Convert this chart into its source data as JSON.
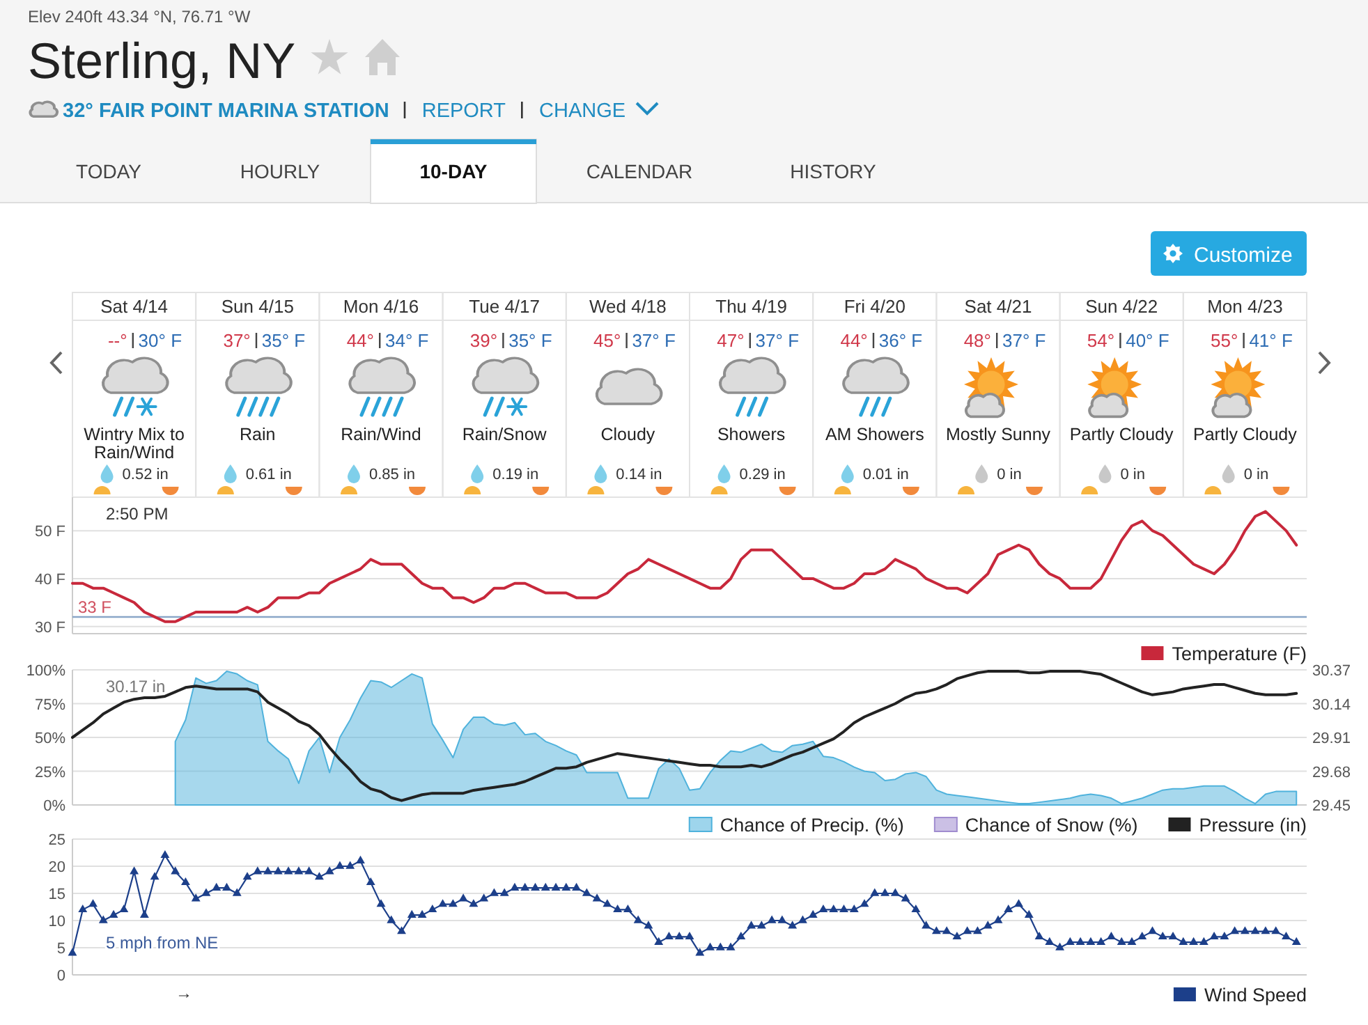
{
  "chart_data": [
    {
      "type": "other",
      "title": "Sterling, NY",
      "subtitle": "Elev 240ft 43.34 °N, 76.71 °W",
      "annotations": [
        "32° FAIR POINT MARINA STATION",
        "REPORT",
        "CHANGE",
        "TODAY",
        "HOURLY",
        "10-DAY",
        "CALENDAR",
        "HISTORY",
        "Customize"
      ]
    },
    {
      "type": "other",
      "annotations": [
        "Sat 4/14",
        "--°",
        "30° F",
        "Wintry Mix to Rain/Wind",
        "0.52 in",
        "Sun 4/15",
        "37°",
        "35° F",
        "Rain",
        "0.61 in",
        "Mon 4/16",
        "44°",
        "34° F",
        "Rain/Wind",
        "0.85 in",
        "Tue 4/17",
        "39°",
        "35° F",
        "Rain/Snow",
        "0.19 in",
        "Wed 4/18",
        "45°",
        "37° F",
        "Cloudy",
        "0.14 in",
        "Thu 4/19",
        "47°",
        "37° F",
        "Showers",
        "0.29 in",
        "Fri 4/20",
        "44°",
        "36° F",
        "AM Showers",
        "0.01 in",
        "Sat 4/21",
        "48°",
        "37° F",
        "Mostly Sunny",
        "0 in",
        "Sun 4/22",
        "54°",
        "40° F",
        "Partly Cloudy",
        "0 in",
        "Mon 4/23",
        "55°",
        "41° F",
        "Partly Cloudy",
        "0 in"
      ]
    },
    {
      "type": "line",
      "categories": [
        null,
        null,
        null,
        null,
        null,
        null,
        null,
        null,
        null,
        null,
        null,
        null,
        null,
        null,
        null,
        null,
        null,
        null,
        null,
        null,
        null,
        null,
        null,
        null,
        null,
        null,
        null,
        null,
        null,
        null,
        null,
        null,
        null,
        null,
        null,
        null,
        null,
        null,
        null,
        null,
        null,
        null,
        null,
        null,
        null,
        null,
        null,
        null,
        null,
        null,
        null,
        null,
        null,
        null,
        null,
        null,
        null,
        null,
        null,
        null,
        null,
        null,
        null,
        null,
        null,
        null,
        null,
        null,
        null,
        null,
        null,
        null,
        null,
        null,
        null,
        null,
        null,
        null,
        null,
        null,
        null,
        null,
        null,
        null,
        null,
        null,
        null,
        null,
        null,
        null,
        null,
        null,
        null,
        null,
        null,
        null,
        null,
        null,
        null,
        null,
        null,
        null,
        null,
        null,
        null,
        null,
        null,
        null,
        null,
        null,
        null,
        null,
        null,
        null,
        null,
        null,
        null,
        null,
        null,
        null,
        null
      ],
      "ylim": [
        28.5,
        57
      ],
      "yticks": [
        {
          "value": 30,
          "label": "30 F"
        },
        {
          "value": 40,
          "label": "40 F"
        },
        {
          "value": 50,
          "label": "50 F"
        }
      ],
      "grid": "y",
      "legend": "bottom right",
      "series": [
        {
          "name": "Temperature (F)",
          "color": "#c8283b",
          "values": [
            39,
            39,
            38,
            38,
            37,
            36,
            35,
            33,
            32,
            31,
            31,
            32,
            33,
            33,
            33,
            33,
            33,
            34,
            33,
            34,
            36,
            36,
            36,
            37,
            37,
            39,
            40,
            41,
            42,
            44,
            43,
            43,
            43,
            41,
            39,
            38,
            38,
            36,
            36,
            35,
            36,
            38,
            38,
            39,
            39,
            38,
            37,
            37,
            37,
            36,
            36,
            36,
            37,
            39,
            41,
            42,
            44,
            43,
            42,
            41,
            40,
            39,
            38,
            38,
            40,
            44,
            46,
            46,
            46,
            44,
            42,
            40,
            40,
            39,
            38,
            38,
            39,
            41,
            41,
            42,
            44,
            43,
            42,
            40,
            39,
            38,
            38,
            37,
            39,
            41,
            45,
            46,
            47,
            46,
            43,
            41,
            40,
            38,
            38,
            38,
            40,
            44,
            48,
            51,
            52,
            50,
            49,
            47,
            45,
            43,
            42,
            41,
            43,
            46,
            50,
            53,
            54,
            52,
            50,
            47,
            null
          ]
        }
      ],
      "ref_lines": [
        {
          "axis": "y",
          "value": 32,
          "color": "#8aa6c8"
        }
      ],
      "annotations": [
        "2:50 PM",
        "33 F"
      ]
    },
    {
      "type": "area",
      "categories": [
        null,
        null,
        null,
        null,
        null,
        null,
        null,
        null,
        null,
        null,
        null,
        null,
        null,
        null,
        null,
        null,
        null,
        null,
        null,
        null,
        null,
        null,
        null,
        null,
        null,
        null,
        null,
        null,
        null,
        null,
        null,
        null,
        null,
        null,
        null,
        null,
        null,
        null,
        null,
        null,
        null,
        null,
        null,
        null,
        null,
        null,
        null,
        null,
        null,
        null,
        null,
        null,
        null,
        null,
        null,
        null,
        null,
        null,
        null,
        null,
        null,
        null,
        null,
        null,
        null,
        null,
        null,
        null,
        null,
        null,
        null,
        null,
        null,
        null,
        null,
        null,
        null,
        null,
        null,
        null,
        null,
        null,
        null,
        null,
        null,
        null,
        null,
        null,
        null,
        null,
        null,
        null,
        null,
        null,
        null,
        null,
        null,
        null,
        null,
        null,
        null,
        null,
        null,
        null,
        null,
        null,
        null,
        null,
        null,
        null,
        null,
        null,
        null,
        null,
        null,
        null,
        null,
        null,
        null,
        null,
        null
      ],
      "ylim": [
        0,
        100
      ],
      "yticks": [
        {
          "value": 0,
          "label": "0%"
        },
        {
          "value": 25,
          "label": "25%"
        },
        {
          "value": 50,
          "label": "50%"
        },
        {
          "value": 75,
          "label": "75%"
        },
        {
          "value": 100,
          "label": "100%"
        }
      ],
      "y2lim": [
        29.45,
        30.37
      ],
      "y2ticks": [
        29.45,
        29.68,
        29.91,
        30.14,
        30.37
      ],
      "grid": "y",
      "legend": "bottom right",
      "series": [
        {
          "name": "Chance of Precip. (%)",
          "color": "#4fb2dc",
          "values": [
            null,
            null,
            null,
            null,
            null,
            null,
            null,
            null,
            null,
            null,
            47,
            63,
            94,
            90,
            92,
            99,
            97,
            92,
            89,
            47,
            40,
            34,
            16,
            40,
            50,
            24,
            50,
            63,
            79,
            92,
            91,
            87,
            92,
            97,
            94,
            60,
            48,
            35,
            56,
            65,
            65,
            60,
            59,
            61,
            52,
            53,
            47,
            44,
            40,
            37,
            24,
            24,
            24,
            24,
            5,
            5,
            5,
            27,
            34,
            27,
            11,
            12,
            24,
            33,
            40,
            39,
            42,
            45,
            40,
            39,
            44,
            45,
            47,
            36,
            35,
            32,
            28,
            25,
            24,
            18,
            19,
            23,
            24,
            21,
            11,
            8,
            7,
            6,
            5,
            4,
            3,
            2,
            1,
            1,
            2,
            3,
            4,
            5,
            7,
            8,
            7,
            5,
            1,
            3,
            5,
            8,
            11,
            12,
            12,
            13,
            14,
            14,
            14,
            10,
            5,
            1,
            8,
            10,
            10,
            10,
            null
          ]
        },
        {
          "name": "Chance of Snow (%)",
          "color": "#a08ccf",
          "values": [
            null,
            null,
            null,
            null,
            null,
            null,
            null,
            null,
            null,
            null,
            null,
            null,
            null,
            null,
            null,
            null,
            null,
            null,
            null,
            null,
            null,
            null,
            null,
            null,
            null,
            null,
            null,
            null,
            null,
            null,
            null,
            null,
            null,
            null,
            null,
            null,
            null,
            null,
            null,
            null,
            null,
            null,
            null,
            null,
            null,
            null,
            null,
            null,
            null,
            null,
            null,
            null,
            null,
            null,
            null,
            null,
            null,
            null,
            null,
            null,
            null,
            null,
            null,
            null,
            null,
            null,
            null,
            null,
            null,
            null,
            null,
            null,
            null,
            null,
            null,
            null,
            null,
            null,
            null,
            null,
            null,
            null,
            null,
            null,
            null,
            null,
            null,
            null,
            null,
            null,
            null,
            null,
            null,
            null,
            null,
            null,
            null,
            null,
            null,
            null,
            null,
            null,
            null,
            null,
            null,
            null,
            null,
            null,
            null,
            null,
            null,
            null,
            null,
            null,
            null,
            null,
            null,
            null,
            null,
            null,
            null
          ]
        },
        {
          "name": "Pressure (in)",
          "type": "line",
          "axis": "y2",
          "color": "#222222",
          "values": [
            29.91,
            29.96,
            30.01,
            30.07,
            30.11,
            30.15,
            30.17,
            30.18,
            30.18,
            30.19,
            30.22,
            30.25,
            30.26,
            30.25,
            30.24,
            30.24,
            30.24,
            30.24,
            30.22,
            30.15,
            30.11,
            30.07,
            30.02,
            29.99,
            29.93,
            29.84,
            29.76,
            29.69,
            29.61,
            29.56,
            29.54,
            29.5,
            29.48,
            29.5,
            29.52,
            29.53,
            29.53,
            29.53,
            29.53,
            29.55,
            29.56,
            29.57,
            29.58,
            29.59,
            29.61,
            29.64,
            29.67,
            29.7,
            29.7,
            29.71,
            29.74,
            29.76,
            29.78,
            29.8,
            29.79,
            29.78,
            29.77,
            29.76,
            29.75,
            29.74,
            29.73,
            29.72,
            29.72,
            29.71,
            29.71,
            29.71,
            29.72,
            29.71,
            29.73,
            29.76,
            29.79,
            29.81,
            29.84,
            29.87,
            29.9,
            29.95,
            30.01,
            30.05,
            30.08,
            30.11,
            30.14,
            30.18,
            30.21,
            30.22,
            30.24,
            30.27,
            30.31,
            30.33,
            30.35,
            30.36,
            30.36,
            30.36,
            30.36,
            30.35,
            30.35,
            30.36,
            30.36,
            30.36,
            30.36,
            30.35,
            30.34,
            30.31,
            30.28,
            30.25,
            30.22,
            30.2,
            30.21,
            30.22,
            30.24,
            30.25,
            30.26,
            30.27,
            30.27,
            30.25,
            30.23,
            30.21,
            30.2,
            30.2,
            30.2,
            30.21,
            null
          ]
        }
      ],
      "annotations": [
        "30.17 in"
      ]
    },
    {
      "type": "line",
      "marker": "triangle",
      "categories": [
        null,
        null,
        null,
        null,
        null,
        null,
        null,
        null,
        null,
        null,
        null,
        null,
        null,
        null,
        null,
        null,
        null,
        null,
        null,
        null,
        null,
        null,
        null,
        null,
        null,
        null,
        null,
        null,
        null,
        null,
        null,
        null,
        null,
        null,
        null,
        null,
        null,
        null,
        null,
        null,
        null,
        null,
        null,
        null,
        null,
        null,
        null,
        null,
        null,
        null,
        null,
        null,
        null,
        null,
        null,
        null,
        null,
        null,
        null,
        null,
        null,
        null,
        null,
        null,
        null,
        null,
        null,
        null,
        null,
        null,
        null,
        null,
        null,
        null,
        null,
        null,
        null,
        null,
        null,
        null,
        null,
        null,
        null,
        null,
        null,
        null,
        null,
        null,
        null,
        null,
        null,
        null,
        null,
        null,
        null,
        null,
        null,
        null,
        null,
        null,
        null,
        null,
        null,
        null,
        null,
        null,
        null,
        null,
        null,
        null,
        null,
        null,
        null,
        null,
        null,
        null,
        null,
        null,
        null,
        null,
        null
      ],
      "ylim": [
        0,
        25
      ],
      "yticks": [
        0,
        5,
        10,
        15,
        20,
        25
      ],
      "grid": "y",
      "legend": "bottom right",
      "series": [
        {
          "name": "Wind Speed",
          "color": "#1c3f8a",
          "values": [
            4,
            12,
            13,
            10,
            11,
            12,
            19,
            11,
            18,
            22,
            19,
            17,
            14,
            15,
            16,
            16,
            15,
            18,
            19,
            19,
            19,
            19,
            19,
            19,
            18,
            19,
            20,
            20,
            21,
            17,
            13,
            10,
            8,
            11,
            11,
            12,
            13,
            13,
            14,
            13,
            14,
            15,
            15,
            16,
            16,
            16,
            16,
            16,
            16,
            16,
            15,
            14,
            13,
            12,
            12,
            10,
            9,
            6,
            7,
            7,
            7,
            4,
            5,
            5,
            5,
            7,
            9,
            9,
            10,
            10,
            9,
            10,
            11,
            12,
            12,
            12,
            12,
            13,
            15,
            15,
            15,
            14,
            12,
            9,
            8,
            8,
            7,
            8,
            8,
            9,
            10,
            12,
            13,
            11,
            7,
            6,
            5,
            6,
            6,
            6,
            6,
            7,
            6,
            6,
            7,
            8,
            7,
            7,
            6,
            6,
            6,
            7,
            7,
            8,
            8,
            8,
            8,
            8,
            7,
            6,
            null
          ]
        }
      ],
      "annotations": [
        "5 mph from NE",
        "→"
      ]
    }
  ]
}
